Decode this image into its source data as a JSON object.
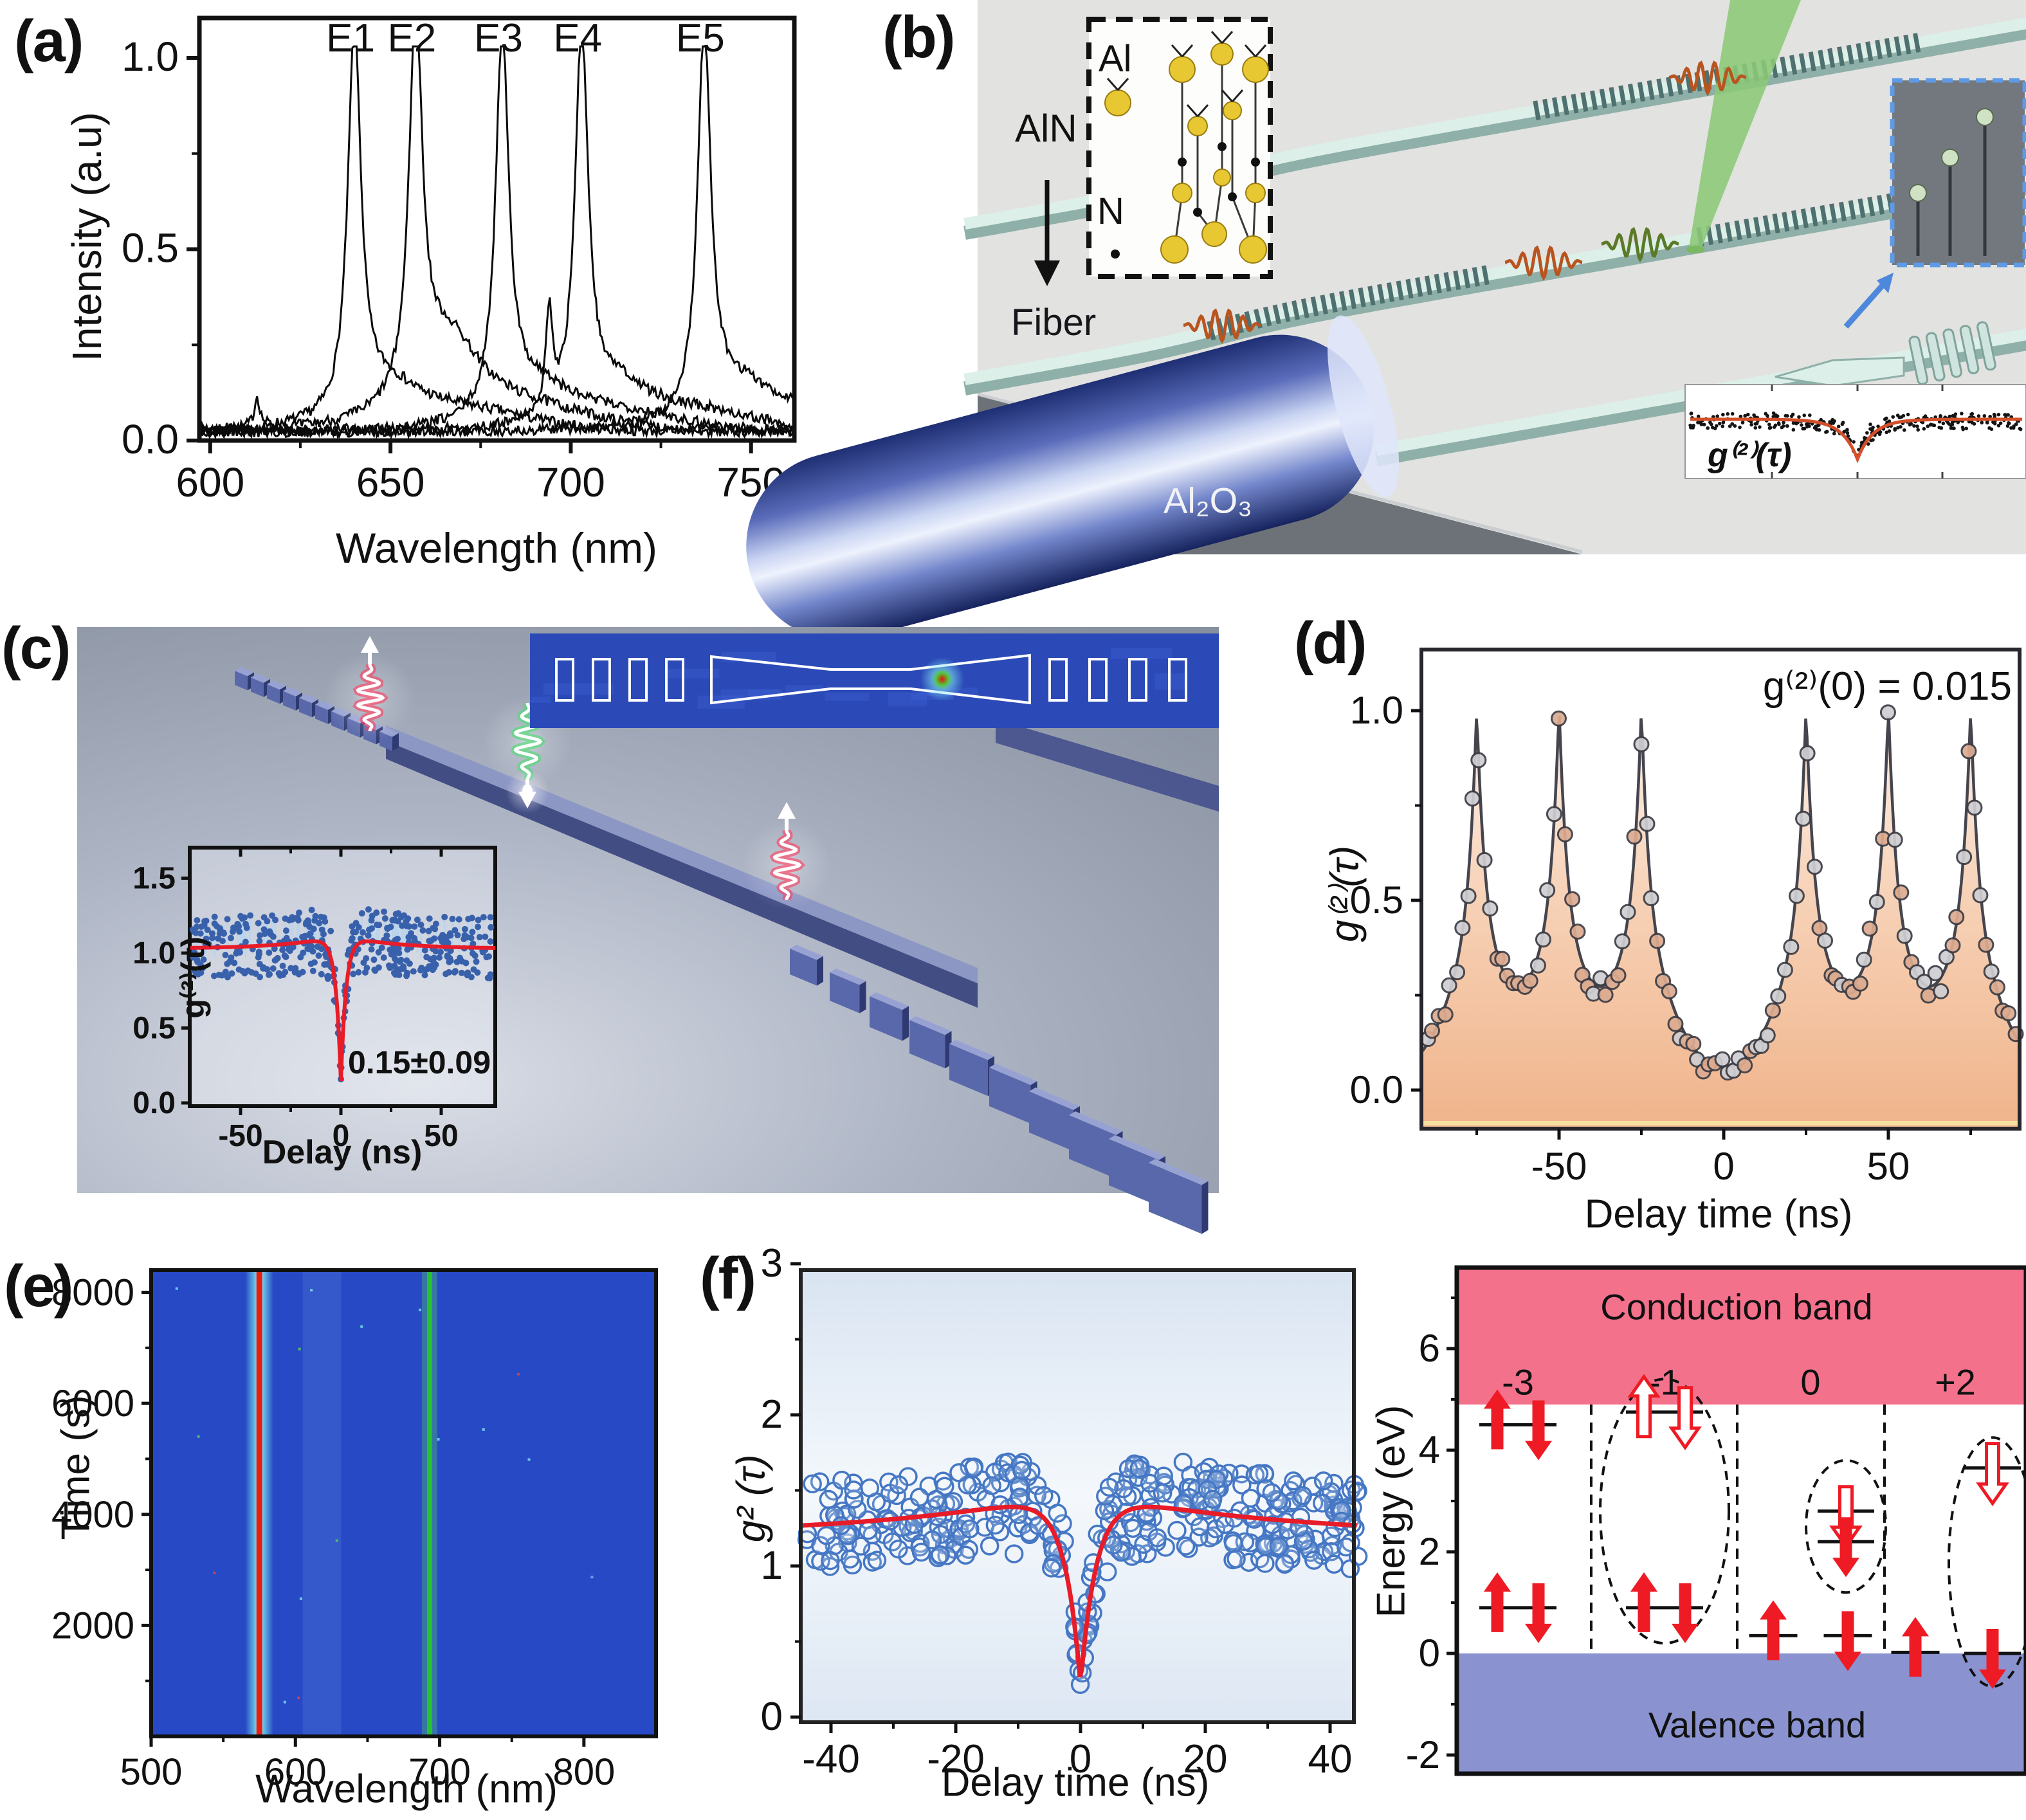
{
  "panel_labels": {
    "a": "(a)",
    "b": "(b)",
    "c": "(c)",
    "d": "(d)",
    "e": "(e)",
    "f": "(f)"
  },
  "schematic_b": {
    "material_label": "AlN",
    "atom_labels": {
      "al": "Al",
      "n": "N"
    },
    "fiber_label": "Fiber",
    "substrate_label": "Al₂O₃",
    "inset_correlation_label": "g⁽²⁾(τ)"
  },
  "colors": {
    "waveguide_teal": "#dcefe9",
    "waveguide_edge": "#8fb0a8",
    "grating_dark": "#4e7170",
    "laser_green": "#8cc878",
    "chip_gray": "#e2e2e0",
    "substrate_gray": "#6d7278",
    "photon_red": "#ff3b5c",
    "photon_green": "#46e06e",
    "render_blue": "#5868aa",
    "ccd_blue": "#2b4ab8",
    "fit_red": "#e81c28",
    "peach_fill": "#f0b48b",
    "heatmap_blue": "#2749c5",
    "heat_line_red": "#e81d10",
    "heat_line_green": "#26c32c",
    "conduction_pink": "#f4718c",
    "valence_violet": "#8a92cf",
    "arrow_red": "#ee1b24",
    "scatter_blue": "#3961ab",
    "open_circle_blue": "#4577c4",
    "gold": "#e8c832"
  },
  "chart_data": [
    {
      "id": "a_spectra",
      "type": "line",
      "title": "",
      "xlabel": "Wavelength (nm)",
      "ylabel": "Intensity (a.u)",
      "xlim": [
        597,
        762
      ],
      "ylim": [
        0,
        1.15
      ],
      "xticks": [
        600,
        650,
        700,
        750
      ],
      "yticks": [
        "0.0",
        "0.5",
        "1.0"
      ],
      "series": [
        {
          "name": "E1",
          "peak_nm": 640,
          "peak_intensity": 1.0
        },
        {
          "name": "E2",
          "peak_nm": 657,
          "peak_intensity": 1.0
        },
        {
          "name": "E3",
          "peak_nm": 681,
          "peak_intensity": 1.0
        },
        {
          "name": "E4",
          "peak_nm": 703,
          "peak_intensity": 1.0
        },
        {
          "name": "E5",
          "peak_nm": 737,
          "peak_intensity": 1.0
        }
      ],
      "minor_spikes_nm": [
        613,
        694
      ]
    },
    {
      "id": "b_inset_g2",
      "type": "scatter+line",
      "label": "g⁽²⁾(τ)",
      "baseline": 1.0,
      "dip_relative_depth": 0.8
    },
    {
      "id": "c_inset_g2",
      "type": "scatter+line",
      "xlabel": "Delay (ns)",
      "ylabel": "g⁽²⁾(τ)",
      "xlim": [
        -75,
        77
      ],
      "ylim": [
        0,
        1.72
      ],
      "xticks": [
        -50,
        0,
        50
      ],
      "yticks": [
        "0.0",
        "0.5",
        "1.0",
        "1.5"
      ],
      "baseline": 1.03,
      "g2_zero": 0.15,
      "annotation": "0.15±0.09"
    },
    {
      "id": "d_pulsed_g2",
      "type": "line+scatter",
      "annotation": "g⁽²⁾(0) = 0.015",
      "xlabel": "Delay time (ns)",
      "ylabel": "g⁽²⁾(τ)",
      "xlim": [
        -91.5,
        89.5
      ],
      "ylim": [
        -0.1,
        1.16
      ],
      "xticks": [
        -50,
        0,
        50
      ],
      "yticks": [
        "0.0",
        "0.5",
        "1.0"
      ],
      "pulse_period_ns": 25,
      "peak_centers_ns": [
        -75,
        -50,
        -25,
        25,
        50,
        75
      ],
      "peak_height": 1.0,
      "valley_level": 0.27,
      "g2_zero": 0.015
    },
    {
      "id": "e_spectral_map",
      "type": "heatmap",
      "xlabel": "Wavelength (nm)",
      "ylabel": "Time (s)",
      "xlim": [
        500,
        850
      ],
      "ylim": [
        0,
        8400
      ],
      "xticks": [
        500,
        600,
        700,
        800
      ],
      "yticks": [
        2000,
        4000,
        6000,
        8000
      ],
      "emission_lines": [
        {
          "wavelength_nm": 575,
          "appearance": "red core with cyan halo"
        },
        {
          "wavelength_nm": 693,
          "appearance": "green"
        }
      ],
      "background": "uniform blue"
    },
    {
      "id": "f_left_g2",
      "type": "scatter+line",
      "xlabel": "Delay time (ns)",
      "ylabel": "g² (τ)",
      "xlim": [
        -45,
        45
      ],
      "ylim": [
        0,
        3
      ],
      "xticks": [
        -40,
        -20,
        0,
        20,
        40
      ],
      "yticks": [
        0,
        1,
        2,
        3
      ],
      "baseline": 1.2,
      "bunching_shoulder": 1.45,
      "g2_zero": 0.25
    },
    {
      "id": "f_right_levels",
      "type": "diagram",
      "ylabel": "Energy (eV)",
      "ylim": [
        -2.7,
        7.6
      ],
      "yticks": [
        -2,
        0,
        2,
        4,
        6
      ],
      "conduction_band_label": "Conduction band",
      "valence_band_label": "Valence band",
      "conduction_band_min_ev": 4.9,
      "valence_band_max_ev": 0.0,
      "columns": [
        {
          "label": "-3",
          "levels": [
            {
              "e": 4.5,
              "dx": 0,
              "lw": 120,
              "arrows": [
                [
                  "up",
                  "filled",
                  -32
                ],
                [
                  "down",
                  "filled",
                  32
                ]
              ]
            },
            {
              "e": 0.9,
              "dx": 0,
              "lw": 120,
              "arrows": [
                [
                  "up",
                  "filled",
                  -32
                ],
                [
                  "down",
                  "filled",
                  32
                ]
              ]
            }
          ]
        },
        {
          "label": "-1",
          "ellipse": {
            "dx": 0,
            "center_e": 2.8,
            "ry_e": 2.6,
            "rx": 100
          },
          "levels": [
            {
              "e": 4.75,
              "dx": 0,
              "lw": 120,
              "arrows": [
                [
                  "up",
                  "hollow",
                  -32
                ],
                [
                  "down",
                  "hollow",
                  32
                ]
              ]
            },
            {
              "e": 0.9,
              "dx": 0,
              "lw": 120,
              "arrows": [
                [
                  "up",
                  "filled",
                  -32
                ],
                [
                  "down",
                  "filled",
                  32
                ]
              ]
            }
          ]
        },
        {
          "label": "0",
          "ellipse": {
            "dx": 55,
            "center_e": 2.5,
            "ry_e": 1.3,
            "rx": 62
          },
          "levels": [
            {
              "e": 0.35,
              "dx": -58,
              "lw": 75,
              "arrows": [
                [
                  "up",
                  "filled",
                  0
                ]
              ]
            },
            {
              "e": 0.35,
              "dx": 58,
              "lw": 75,
              "arrows": [
                [
                  "down",
                  "filled",
                  0
                ]
              ]
            },
            {
              "e": 2.8,
              "dx": 55,
              "lw": 88,
              "arrows": [
                [
                  "down",
                  "hollow",
                  0
                ]
              ]
            },
            {
              "e": 2.2,
              "dx": 55,
              "lw": 88,
              "arrows": [
                [
                  "down",
                  "filled",
                  0
                ]
              ]
            }
          ]
        },
        {
          "label": "+2",
          "ellipse": {
            "dx": 58,
            "center_e": 1.8,
            "ry_e": 2.45,
            "rx": 68
          },
          "levels": [
            {
              "e": 0.02,
              "dx": -62,
              "lw": 75,
              "arrows": [
                [
                  "up",
                  "filled",
                  0
                ]
              ]
            },
            {
              "e": 3.65,
              "dx": 58,
              "lw": 88,
              "arrows": [
                [
                  "down",
                  "hollow",
                  0
                ]
              ]
            },
            {
              "e": 0.0,
              "dx": 58,
              "lw": 88,
              "arrows": [
                [
                  "down",
                  "filled",
                  0
                ]
              ]
            }
          ]
        }
      ]
    }
  ]
}
